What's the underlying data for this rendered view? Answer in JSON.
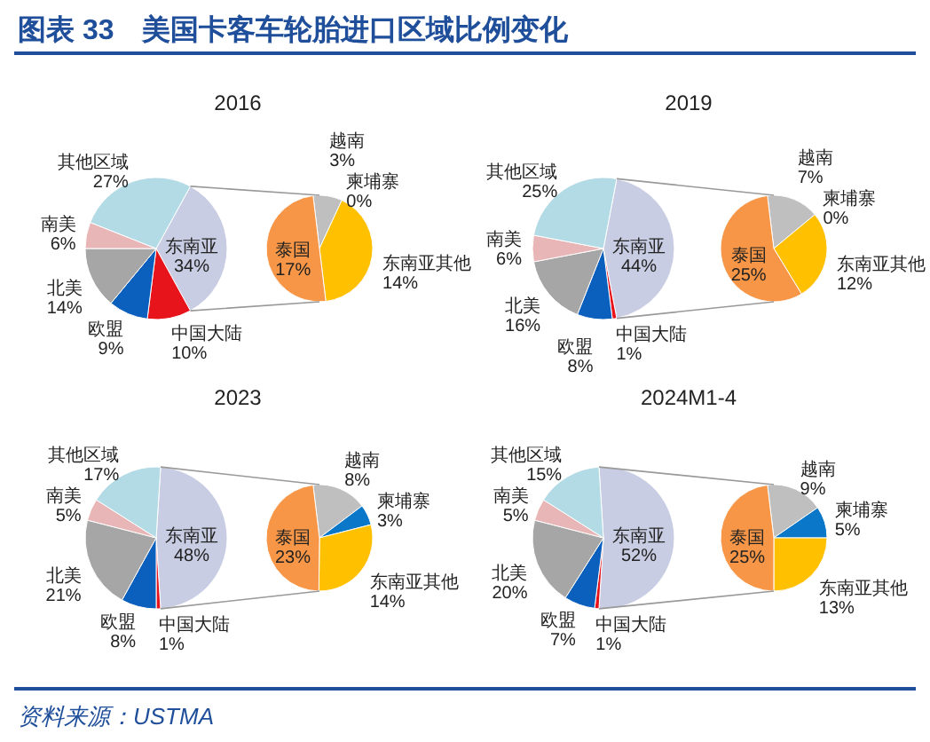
{
  "chart_data": [
    {
      "type": "pie",
      "title": "2016",
      "annotations": [
        "图表 33　美国卡客车轮胎进口区域比例变化"
      ],
      "categories": [
        "东南亚",
        "中国大陆",
        "欧盟",
        "北美",
        "南美",
        "其他区域"
      ],
      "values": [
        34,
        10,
        9,
        14,
        6,
        27
      ],
      "value_labels": [
        "34%",
        "10%",
        "9%",
        "14%",
        "6%",
        "27%"
      ],
      "colors": [
        "#c9cde3",
        "#e8141c",
        "#0b5fbd",
        "#a6a6a6",
        "#e9b6b7",
        "#b3dbe6"
      ]
    },
    {
      "type": "pie",
      "categories": [
        "越南",
        "柬埔寨",
        "东南亚其他",
        "泰国"
      ],
      "values": [
        3,
        0,
        14,
        17
      ],
      "value_labels": [
        "3%",
        "0%",
        "14%",
        "17%"
      ],
      "colors": [
        "#bfbfbf",
        "#0a77c9",
        "#ffc000",
        "#f79646"
      ]
    },
    {
      "type": "pie",
      "title": "2019",
      "categories": [
        "东南亚",
        "中国大陆",
        "欧盟",
        "北美",
        "南美",
        "其他区域"
      ],
      "values": [
        44,
        1,
        8,
        16,
        6,
        25
      ],
      "value_labels": [
        "44%",
        "1%",
        "8%",
        "16%",
        "6%",
        "25%"
      ],
      "colors": [
        "#c9cde3",
        "#e8141c",
        "#0b5fbd",
        "#a6a6a6",
        "#e9b6b7",
        "#b3dbe6"
      ]
    },
    {
      "type": "pie",
      "categories": [
        "越南",
        "柬埔寨",
        "东南亚其他",
        "泰国"
      ],
      "values": [
        7,
        0,
        12,
        25
      ],
      "value_labels": [
        "7%",
        "0%",
        "12%",
        "25%"
      ],
      "colors": [
        "#bfbfbf",
        "#0a77c9",
        "#ffc000",
        "#f79646"
      ]
    },
    {
      "type": "pie",
      "title": "2023",
      "categories": [
        "东南亚",
        "中国大陆",
        "欧盟",
        "北美",
        "南美",
        "其他区域"
      ],
      "values": [
        48,
        1,
        8,
        21,
        5,
        17
      ],
      "value_labels": [
        "48%",
        "1%",
        "8%",
        "21%",
        "5%",
        "17%"
      ],
      "colors": [
        "#c9cde3",
        "#e8141c",
        "#0b5fbd",
        "#a6a6a6",
        "#e9b6b7",
        "#b3dbe6"
      ]
    },
    {
      "type": "pie",
      "categories": [
        "越南",
        "柬埔寨",
        "东南亚其他",
        "泰国"
      ],
      "values": [
        8,
        3,
        14,
        23
      ],
      "value_labels": [
        "8%",
        "3%",
        "14%",
        "23%"
      ],
      "colors": [
        "#bfbfbf",
        "#0a77c9",
        "#ffc000",
        "#f79646"
      ]
    },
    {
      "type": "pie",
      "title": "2024M1-4",
      "categories": [
        "东南亚",
        "中国大陆",
        "欧盟",
        "北美",
        "南美",
        "其他区域"
      ],
      "values": [
        52,
        1,
        7,
        20,
        5,
        15
      ],
      "value_labels": [
        "52%",
        "1%",
        "7%",
        "20%",
        "5%",
        "15%"
      ],
      "colors": [
        "#c9cde3",
        "#e8141c",
        "#0b5fbd",
        "#a6a6a6",
        "#e9b6b7",
        "#b3dbe6"
      ]
    },
    {
      "type": "pie",
      "annotations": [
        "资料来源：USTMA"
      ],
      "categories": [
        "越南",
        "柬埔寨",
        "东南亚其他",
        "泰国"
      ],
      "values": [
        9,
        5,
        13,
        25
      ],
      "value_labels": [
        "9%",
        "5%",
        "13%",
        "25%"
      ],
      "colors": [
        "#bfbfbf",
        "#0a77c9",
        "#ffc000",
        "#f79646"
      ]
    }
  ]
}
